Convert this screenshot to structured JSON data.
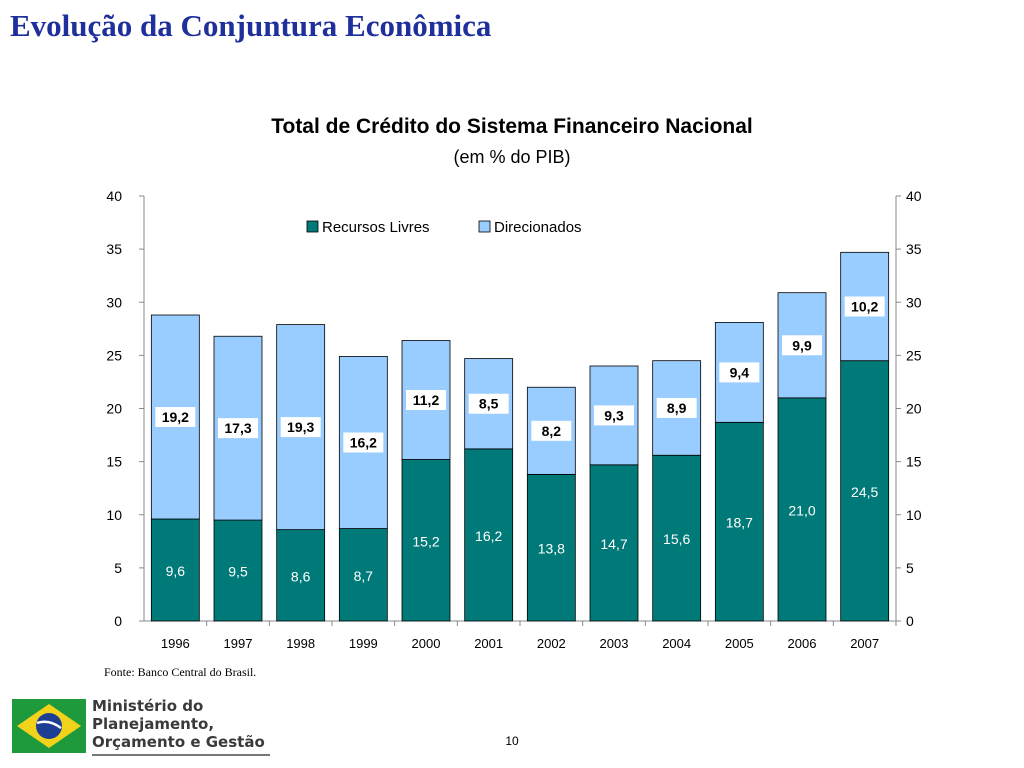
{
  "slide_title": "Evolução da Conjuntura Econômica",
  "source_note": "Fonte: Banco Central do Brasil.",
  "page_number": "10",
  "logo": {
    "lines": [
      "Ministério do",
      "Planejamento,",
      "Orçamento e Gestão"
    ]
  },
  "colors": {
    "recursos_livres": "#007a78",
    "direcionados": "#99ccff",
    "title": "#1f2f9c"
  },
  "chart_data": {
    "type": "bar",
    "stacked": true,
    "title": "Total de Crédito do Sistema Financeiro Nacional",
    "subtitle": "(em % do PIB)",
    "categories": [
      "1996",
      "1997",
      "1998",
      "1999",
      "2000",
      "2001",
      "2002",
      "2003",
      "2004",
      "2005",
      "2006",
      "2007"
    ],
    "series": [
      {
        "name": "Recursos Livres",
        "values": [
          9.6,
          9.5,
          8.6,
          8.7,
          15.2,
          16.2,
          13.8,
          14.7,
          15.6,
          18.7,
          21.0,
          24.5
        ],
        "labels": [
          "9,6",
          "9,5",
          "8,6",
          "8,7",
          "15,2",
          "16,2",
          "13,8",
          "14,7",
          "15,6",
          "18,7",
          "21,0",
          "24,5"
        ]
      },
      {
        "name": "Direcionados",
        "values": [
          19.2,
          17.3,
          19.3,
          16.2,
          11.2,
          8.5,
          8.2,
          9.3,
          8.9,
          9.4,
          9.9,
          10.2
        ],
        "labels": [
          "19,2",
          "17,3",
          "19,3",
          "16,2",
          "11,2",
          "8,5",
          "8,2",
          "9,3",
          "8,9",
          "9,4",
          "9,9",
          "10,2"
        ]
      }
    ],
    "ylim": [
      0,
      40
    ],
    "yticks": [
      "0",
      "5",
      "10",
      "15",
      "20",
      "25",
      "30",
      "35",
      "40"
    ],
    "secondary_y_axis": true,
    "legend_position": "top-center",
    "grid": false
  }
}
